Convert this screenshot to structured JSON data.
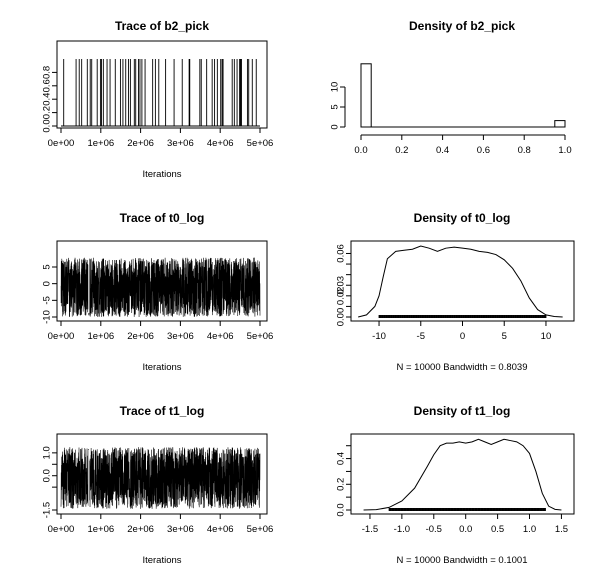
{
  "chart_data": [
    {
      "id": "trace_b2_pick",
      "type": "line",
      "title": "Trace of b2_pick",
      "xlabel": "Iterations",
      "xticks": [
        "0e+00",
        "1e+06",
        "2e+06",
        "3e+06",
        "4e+06",
        "5e+06"
      ],
      "xlim": [
        0,
        5100000
      ],
      "yticks": [
        "0.0",
        "0.2",
        "0.4",
        "0.6",
        "0.8"
      ],
      "ylim": [
        0,
        1
      ],
      "grid": false,
      "description_values": {
        "min": 0,
        "max": 1,
        "pattern": "binary 0/1 switching trace"
      }
    },
    {
      "id": "density_b2_pick",
      "type": "bar",
      "title": "Density of b2_pick",
      "xticks": [
        "0.0",
        "0.2",
        "0.4",
        "0.6",
        "0.8",
        "1.0"
      ],
      "yticks": [
        "0",
        "5",
        "10"
      ],
      "ylim": [
        0,
        17
      ],
      "grid": false,
      "bins": [
        {
          "x0": 0.0,
          "x1": 0.05,
          "value": 15.8
        },
        {
          "x0": 0.95,
          "x1": 1.0,
          "value": 1.6
        }
      ]
    },
    {
      "id": "trace_t0_log",
      "type": "line",
      "title": "Trace of t0_log",
      "xlabel": "Iterations",
      "xticks": [
        "0e+00",
        "1e+06",
        "2e+06",
        "3e+06",
        "4e+06",
        "5e+06"
      ],
      "yticks": [
        "-10",
        "-5",
        "0",
        "5"
      ],
      "ylim": [
        -10,
        8
      ],
      "grid": false
    },
    {
      "id": "density_t0_log",
      "type": "line",
      "title": "Density of t0_log",
      "xlabel": "N = 10000   Bandwidth = 0.8039",
      "xticks": [
        "-10",
        "-5",
        "0",
        "5",
        "10"
      ],
      "yticks": [
        "0.00",
        "0.01",
        "0.02",
        "0.03",
        "0.04",
        "0.05",
        "0.06"
      ],
      "ytick_labels_shown": [
        "0.00",
        "0.02",
        "0.03",
        "0.06"
      ],
      "xlim": [
        -13,
        13
      ],
      "ylim": [
        0,
        0.068
      ],
      "rug_range": [
        -10,
        10
      ],
      "grid": false,
      "series": [
        {
          "x": [
            -12.5,
            -11.5,
            -10.5,
            -10,
            -9.5,
            -9,
            -8,
            -7,
            -6,
            -5,
            -4,
            -3,
            -2,
            -1,
            0,
            1,
            2,
            3,
            4,
            5,
            6,
            7,
            8,
            9,
            10,
            11,
            12
          ],
          "y": [
            0.0,
            0.002,
            0.01,
            0.02,
            0.038,
            0.055,
            0.062,
            0.063,
            0.064,
            0.067,
            0.065,
            0.062,
            0.065,
            0.066,
            0.065,
            0.064,
            0.062,
            0.061,
            0.059,
            0.054,
            0.046,
            0.034,
            0.018,
            0.007,
            0.002,
            0.0005,
            0.0
          ]
        }
      ]
    },
    {
      "id": "trace_t1_log",
      "type": "line",
      "title": "Trace of t1_log",
      "xlabel": "Iterations",
      "xticks": [
        "0e+00",
        "1e+06",
        "2e+06",
        "3e+06",
        "4e+06",
        "5e+06"
      ],
      "yticks": [
        "-1.5",
        "-0.5",
        "0.0",
        "0.5",
        "1.0"
      ],
      "ytick_labels_shown": [
        "-1.5",
        "0.0",
        "1.0"
      ],
      "ylim": [
        -1.5,
        1.3
      ],
      "grid": false
    },
    {
      "id": "density_t1_log",
      "type": "line",
      "title": "Density of t1_log",
      "xlabel": "N = 10000   Bandwidth = 0.1001",
      "xticks": [
        "-1.5",
        "-1.0",
        "-0.5",
        "0.0",
        "0.5",
        "1.0",
        "1.5"
      ],
      "yticks": [
        "0.0",
        "0.1",
        "0.2",
        "0.3",
        "0.4",
        "0.5"
      ],
      "ytick_labels_shown": [
        "0.0",
        "0.2",
        "0.4"
      ],
      "xlim": [
        -1.75,
        1.65
      ],
      "ylim": [
        0,
        0.56
      ],
      "rug_range": [
        -1.2,
        1.25
      ],
      "grid": false,
      "series": [
        {
          "x": [
            -1.6,
            -1.4,
            -1.2,
            -1.0,
            -0.8,
            -0.6,
            -0.5,
            -0.4,
            -0.3,
            -0.2,
            -0.1,
            0.0,
            0.1,
            0.2,
            0.3,
            0.4,
            0.5,
            0.6,
            0.7,
            0.8,
            0.9,
            1.0,
            1.1,
            1.2,
            1.3,
            1.4,
            1.5
          ],
          "y": [
            0.0,
            0.003,
            0.02,
            0.07,
            0.17,
            0.34,
            0.43,
            0.5,
            0.52,
            0.52,
            0.53,
            0.52,
            0.53,
            0.55,
            0.53,
            0.51,
            0.53,
            0.55,
            0.54,
            0.53,
            0.5,
            0.44,
            0.3,
            0.13,
            0.03,
            0.005,
            0.0
          ]
        }
      ]
    }
  ]
}
